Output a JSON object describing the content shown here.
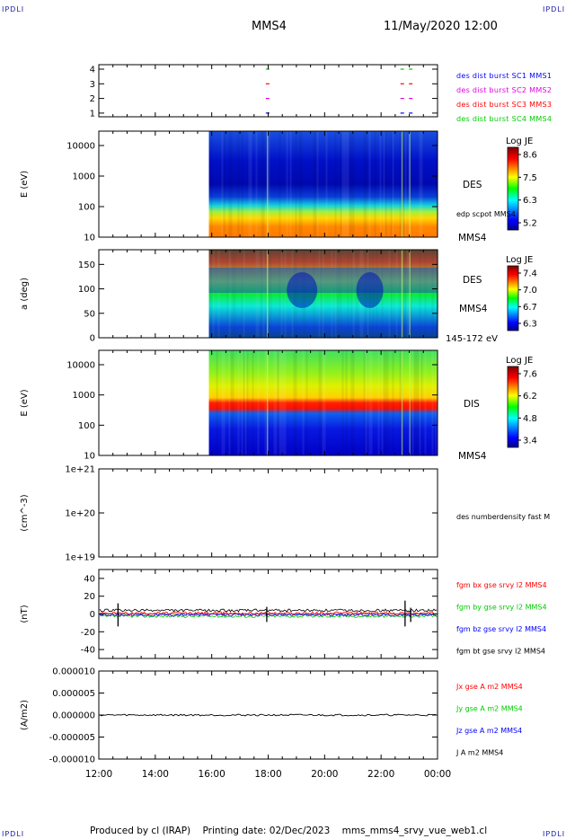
{
  "corner_marks": {
    "top_left": "IPDLI",
    "top_right": "IPDLI",
    "bottom_left": "IPDLI",
    "bottom_right": "IPDLI"
  },
  "header": {
    "spacecraft": "MMS4",
    "datetime": "11/May/2020 12:00"
  },
  "footer": {
    "producer": "Produced by cl (IRAP)",
    "printing_date": "Printing date: 02/Dec/2023",
    "filename": "mms_mms4_srvy_vue_web1.cl"
  },
  "colors": {
    "blue": "#0000ff",
    "magenta": "#e000e0",
    "red": "#ff0000",
    "green": "#00cc00",
    "black": "#000000"
  },
  "chart_data": [
    {
      "type": "scatter",
      "panel": "burst availability",
      "y_ticks": [
        "4",
        "3",
        "2",
        "1"
      ],
      "legend": [
        {
          "label": "des dist burst SC1 MMS1",
          "color": "#0000ff"
        },
        {
          "label": "des dist burst SC2 MMS2",
          "color": "#e000e0"
        },
        {
          "label": "des dist burst SC3 MMS3",
          "color": "#ff0000"
        },
        {
          "label": "des dist burst SC4 MMS4",
          "color": "#00cc00"
        }
      ],
      "series": [
        {
          "name": "des dist burst SC1 MMS1",
          "level": 1,
          "x_hours": [
            17.98,
            22.75,
            23.05
          ]
        },
        {
          "name": "des dist burst SC2 MMS2",
          "level": 2,
          "x_hours": [
            17.98,
            22.75,
            23.05
          ]
        },
        {
          "name": "des dist burst SC3 MMS3",
          "level": 3,
          "x_hours": [
            17.98,
            22.75,
            23.05
          ]
        },
        {
          "name": "des dist burst SC4 MMS4",
          "level": 4,
          "x_hours": [
            17.98,
            22.75,
            23.05
          ]
        }
      ]
    },
    {
      "type": "heatmap",
      "panel": "DES energy spectrogram",
      "ylabel": "E (eV)",
      "y_log": true,
      "y_ticks": [
        "10000",
        "1000",
        "100",
        "10"
      ],
      "label": "DES",
      "overlay_label": "edp scpot MMS4",
      "sc_label": "MMS4",
      "colorbar": {
        "title": "Log JE",
        "ticks": [
          "8.6",
          "7.5",
          "6.3",
          "5.2"
        ]
      },
      "data_start_hour": 15.9
    },
    {
      "type": "heatmap",
      "panel": "DES pitch angle distribution",
      "ylabel": "a (deg)",
      "y_ticks": [
        "150",
        "100",
        "50",
        "0"
      ],
      "ylim": [
        0,
        180
      ],
      "label": "DES",
      "sc_label": "MMS4",
      "energy_range": "145-172 eV",
      "colorbar": {
        "title": "Log JE",
        "ticks": [
          "7.4",
          "7.0",
          "6.7",
          "6.3"
        ]
      },
      "data_start_hour": 15.9
    },
    {
      "type": "heatmap",
      "panel": "DIS energy spectrogram",
      "ylabel": "E (eV)",
      "y_log": true,
      "y_ticks": [
        "10000",
        "1000",
        "100",
        "10"
      ],
      "label": "DIS",
      "sc_label": "MMS4",
      "colorbar": {
        "title": "Log JE",
        "ticks": [
          "7.6",
          "6.2",
          "4.8",
          "3.4"
        ]
      },
      "data_start_hour": 15.9
    },
    {
      "type": "line",
      "panel": "electron density",
      "ylabel": "(cm^-3)",
      "y_log": true,
      "y_ticks": [
        "1e+21",
        "1e+20",
        "1e+19"
      ],
      "ylim": [
        1e+19,
        1e+21
      ],
      "legend": [
        {
          "label": "des numberdensity fast M",
          "color": "#000000"
        }
      ],
      "series": []
    },
    {
      "type": "line",
      "panel": "magnetic field",
      "ylabel": "(nT)",
      "y_ticks": [
        "40",
        "20",
        "0",
        "-20",
        "-40"
      ],
      "ylim": [
        -50,
        50
      ],
      "legend": [
        {
          "label": "fgm bx gse srvy l2 MMS4",
          "color": "#ff0000"
        },
        {
          "label": "fgm by gse srvy l2 MMS4",
          "color": "#00cc00"
        },
        {
          "label": "fgm bz gse srvy l2 MMS4",
          "color": "#0000ff"
        },
        {
          "label": "fgm bt gse srvy l2 MMS4",
          "color": "#000000"
        }
      ]
    },
    {
      "type": "line",
      "panel": "current density",
      "ylabel": "(A/m2)",
      "y_ticks": [
        "0.000010",
        "0.000005",
        "0.000000",
        "-0.000005",
        "-0.000010"
      ],
      "ylim": [
        -1e-05,
        1e-05
      ],
      "legend": [
        {
          "label": "Jx gse A m2 MMS4",
          "color": "#ff0000"
        },
        {
          "label": "Jy gse A m2 MMS4",
          "color": "#00cc00"
        },
        {
          "label": "Jz gse A m2 MMS4",
          "color": "#0000ff"
        },
        {
          "label": "J A m2 MMS4",
          "color": "#000000"
        }
      ]
    }
  ],
  "time_axis": {
    "ticks": [
      "12:00",
      "14:00",
      "16:00",
      "18:00",
      "20:00",
      "22:00",
      "00:00"
    ],
    "start_hour": 12,
    "end_hour": 24
  }
}
